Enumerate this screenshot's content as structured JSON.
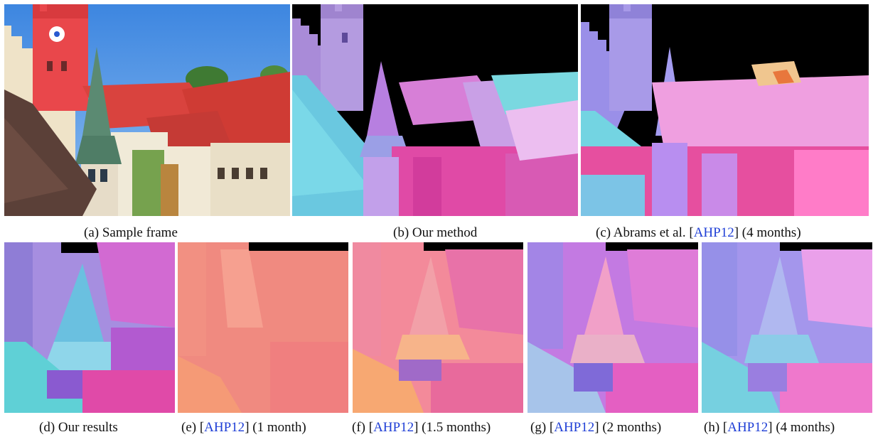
{
  "figure": {
    "captions": {
      "a": {
        "prefix": "(a) Sample frame",
        "cite": "",
        "suffix": ""
      },
      "b": {
        "prefix": "(b) Our method",
        "cite": "",
        "suffix": ""
      },
      "c": {
        "prefix": "(c) Abrams et al. [",
        "cite": "AHP12",
        "suffix": "] (4 months)"
      },
      "d": {
        "prefix": "(d) Our results",
        "cite": "",
        "suffix": ""
      },
      "e": {
        "prefix": "(e) [",
        "cite": "AHP12",
        "suffix": "] (1 month)"
      },
      "f": {
        "prefix": "(f) [",
        "cite": "AHP12",
        "suffix": "] (1.5 months)"
      },
      "g": {
        "prefix": "(g) [",
        "cite": "AHP12",
        "suffix": "] (2 months)"
      },
      "h": {
        "prefix": "(h) [",
        "cite": "AHP12",
        "suffix": "] (4 months)"
      }
    },
    "colors": {
      "citation_link": "#1f3fd6",
      "sky": "#4a8ee0",
      "black_background": "#000000"
    }
  }
}
